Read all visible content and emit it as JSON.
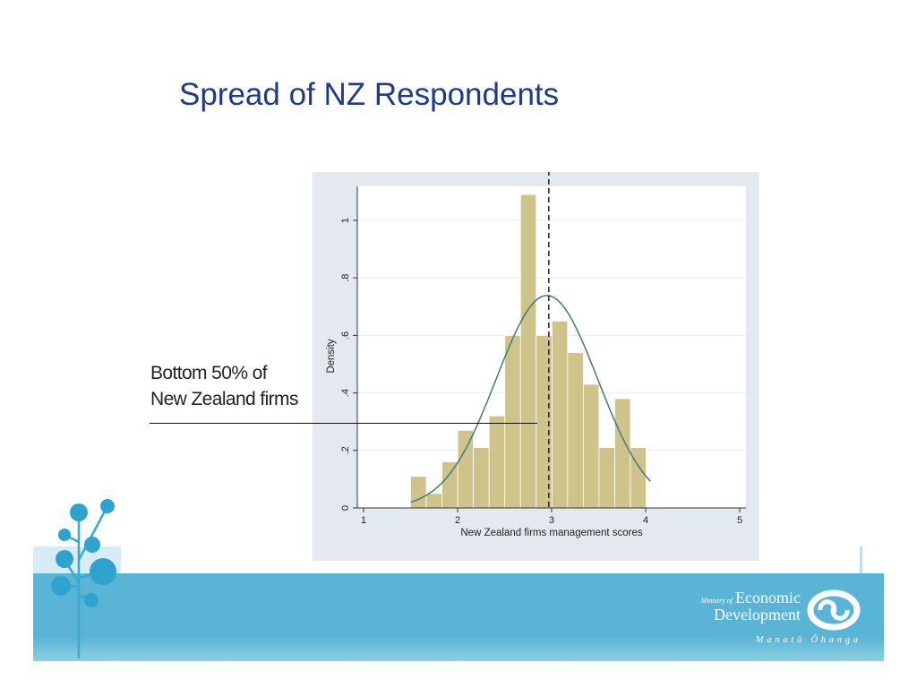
{
  "slide": {
    "title": "Spread of NZ Respondents"
  },
  "annotation": {
    "line1": "Bottom 50% of",
    "line2": "New Zealand firms"
  },
  "logo": {
    "ministry_of": "Ministry of",
    "economic": "Economic",
    "development": "Development",
    "maori": "Manatū Ōhanga"
  },
  "colors": {
    "title": "#1f3a8a",
    "bar_fill": "#cfc38c",
    "bar_stroke": "#ffffff",
    "curve": "#4d7f7a",
    "panel_bg": "#e3e9ee",
    "plot_bg": "#ffffff",
    "footer": "#5ab4d6"
  },
  "chart_data": {
    "type": "bar",
    "subtype": "histogram with normal density overlay",
    "title": "",
    "xlabel": "New Zealand firms management scores",
    "ylabel": "Density",
    "xlim": [
      1,
      5
    ],
    "ylim": [
      0,
      1.1
    ],
    "x_ticks": [
      1,
      2,
      3,
      4,
      5
    ],
    "y_ticks": [
      0,
      0.2,
      0.4,
      0.6,
      0.8,
      1
    ],
    "x_tick_labels": [
      "1",
      "2",
      "3",
      "4",
      "5"
    ],
    "y_tick_labels": [
      "0",
      ".2",
      ".4",
      ".6",
      ".8",
      "1"
    ],
    "grid": "horizontal",
    "bin_width": 0.167,
    "bins_start": 1.5,
    "values": [
      0.11,
      0.05,
      0.16,
      0.27,
      0.21,
      0.32,
      0.6,
      1.09,
      0.6,
      0.65,
      0.54,
      0.43,
      0.21,
      0.38,
      0.21
    ],
    "normal_curve": {
      "mean": 2.95,
      "sd": 0.54,
      "x_range": [
        1.5,
        4.05
      ]
    },
    "reference_line": {
      "x": 2.97,
      "style": "dashed"
    }
  }
}
